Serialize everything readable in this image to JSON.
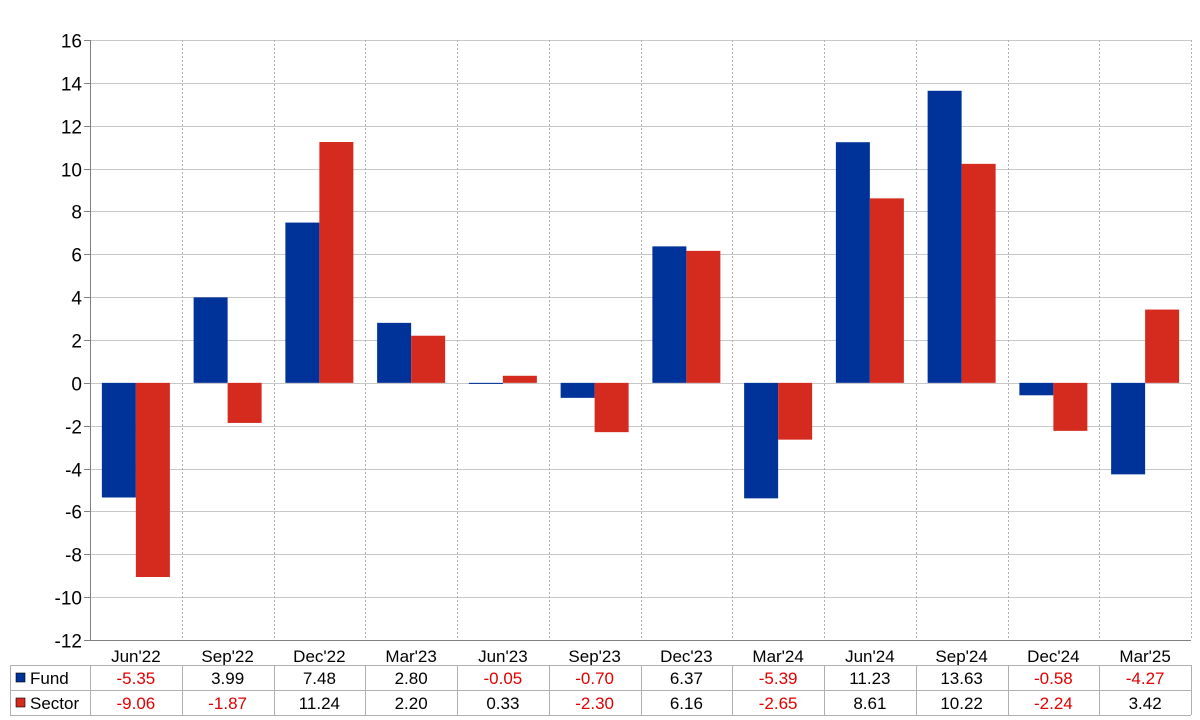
{
  "chart_data": {
    "type": "bar",
    "title": "",
    "xlabel": "",
    "ylabel": "",
    "ylim": [
      -12,
      16
    ],
    "yticks": [
      -12,
      -10,
      -8,
      -6,
      -4,
      -2,
      0,
      2,
      4,
      6,
      8,
      10,
      12,
      14,
      16
    ],
    "grid": true,
    "legend": "table-below",
    "categories": [
      "Jun'22",
      "Sep'22",
      "Dec'22",
      "Mar'23",
      "Jun'23",
      "Sep'23",
      "Dec'23",
      "Mar'24",
      "Jun'24",
      "Sep'24",
      "Dec'24",
      "Mar'25"
    ],
    "series": [
      {
        "name": "Fund",
        "color": "#003399",
        "values": [
          -5.35,
          3.99,
          7.48,
          2.8,
          -0.05,
          -0.7,
          6.37,
          -5.39,
          11.23,
          13.63,
          -0.58,
          -4.27
        ],
        "labels": [
          "-5.35",
          "3.99",
          "7.48",
          "2.80",
          "-0.05",
          "-0.70",
          "6.37",
          "-5.39",
          "11.23",
          "13.63",
          "-0.58",
          "-4.27"
        ]
      },
      {
        "name": "Sector",
        "color": "#d52b1e",
        "values": [
          -9.06,
          -1.87,
          11.24,
          2.2,
          0.33,
          -2.3,
          6.16,
          -2.65,
          8.61,
          10.22,
          -2.24,
          3.42
        ],
        "labels": [
          "-9.06",
          "-1.87",
          "11.24",
          "2.20",
          "0.33",
          "-2.30",
          "6.16",
          "-2.65",
          "8.61",
          "10.22",
          "-2.24",
          "3.42"
        ]
      }
    ],
    "negative_label_color": "#e00000",
    "positive_label_color": "#000000"
  }
}
